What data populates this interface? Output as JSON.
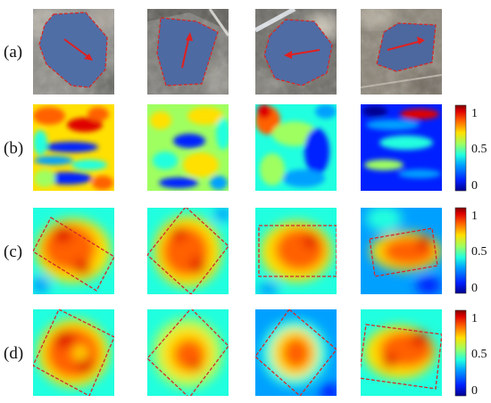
{
  "figure": {
    "row_labels": [
      "(a)",
      "(b)",
      "(c)",
      "(d)"
    ],
    "colorbar_ticks": [
      "1",
      "0.5",
      "0"
    ],
    "colormap": [
      "#00008f",
      "#0020ff",
      "#00a0ff",
      "#20ffdf",
      "#9fff60",
      "#ffe000",
      "#ff6000",
      "#df0000",
      "#800000"
    ],
    "outline_color": "#d42a2a",
    "arrow_color": "#e02020"
  }
}
